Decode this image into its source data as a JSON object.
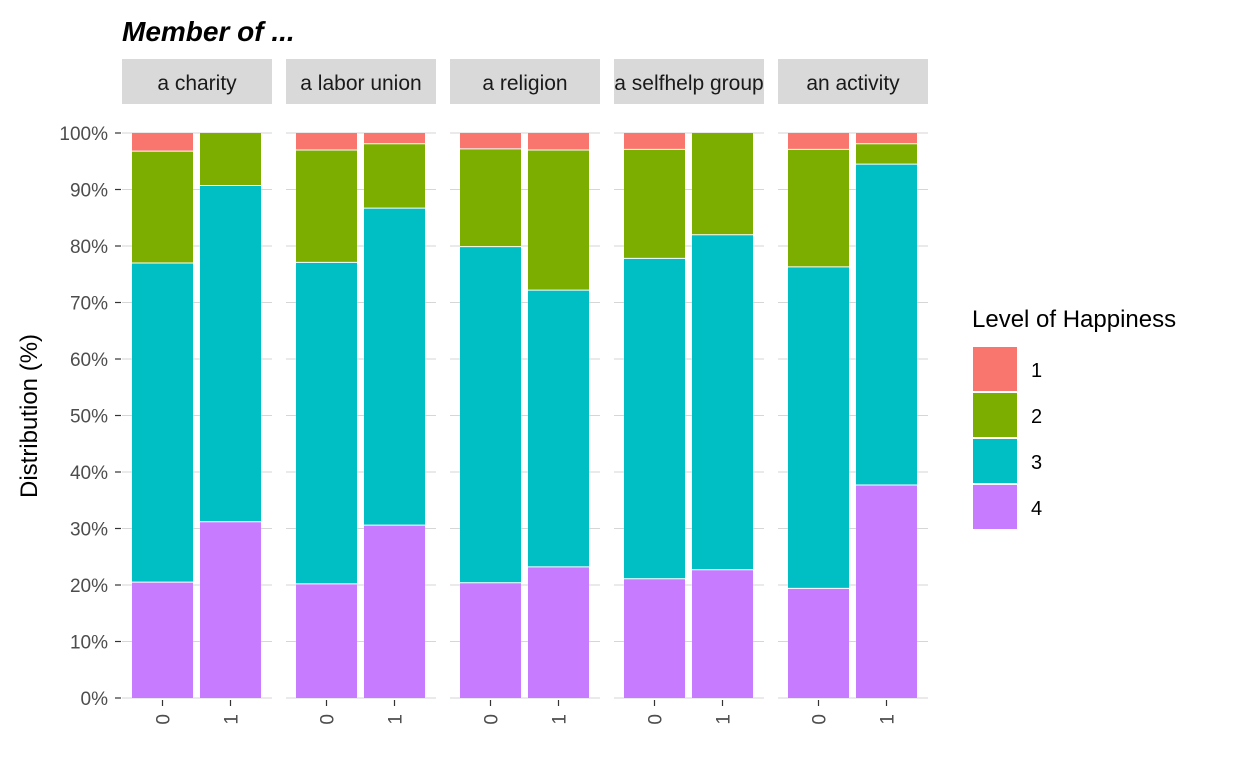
{
  "chart_data": {
    "type": "bar",
    "stacked": true,
    "title": "Member of ...",
    "ylabel": "Distribution (%)",
    "xlabel": "",
    "ylim": [
      0,
      100
    ],
    "y_ticks": [
      "0%",
      "10%",
      "20%",
      "30%",
      "40%",
      "50%",
      "60%",
      "70%",
      "80%",
      "90%",
      "100%"
    ],
    "legend_title": "Level of Happiness",
    "legend_position": "right",
    "grid": true,
    "categories": [
      "0",
      "1"
    ],
    "levels": [
      {
        "name": "1",
        "color": "#F8766D"
      },
      {
        "name": "2",
        "color": "#7CAE00"
      },
      {
        "name": "3",
        "color": "#00BFC4"
      },
      {
        "name": "4",
        "color": "#C77CFF"
      }
    ],
    "panels": [
      {
        "label": "a charity",
        "bars": [
          {
            "category": "0",
            "values": {
              "4": 20.5,
              "3": 56.5,
              "2": 19.8,
              "1": 3.2
            }
          },
          {
            "category": "1",
            "values": {
              "4": 31.2,
              "3": 59.5,
              "2": 9.3,
              "1": 0
            }
          }
        ]
      },
      {
        "label": "a labor union",
        "bars": [
          {
            "category": "0",
            "values": {
              "4": 20.2,
              "3": 56.9,
              "2": 19.9,
              "1": 3.0
            }
          },
          {
            "category": "1",
            "values": {
              "4": 30.6,
              "3": 56.1,
              "2": 11.4,
              "1": 1.9
            }
          }
        ]
      },
      {
        "label": "a religion",
        "bars": [
          {
            "category": "0",
            "values": {
              "4": 20.4,
              "3": 59.5,
              "2": 17.3,
              "1": 2.8
            }
          },
          {
            "category": "1",
            "values": {
              "4": 23.2,
              "3": 49.0,
              "2": 24.8,
              "1": 3.0
            }
          }
        ]
      },
      {
        "label": "a selfhelp group",
        "bars": [
          {
            "category": "0",
            "values": {
              "4": 21.1,
              "3": 56.7,
              "2": 19.3,
              "1": 2.9
            }
          },
          {
            "category": "1",
            "values": {
              "4": 22.7,
              "3": 59.3,
              "2": 18.0,
              "1": 0
            }
          }
        ]
      },
      {
        "label": "an activity",
        "bars": [
          {
            "category": "0",
            "values": {
              "4": 19.4,
              "3": 56.9,
              "2": 20.8,
              "1": 2.9
            }
          },
          {
            "category": "1",
            "values": {
              "4": 37.7,
              "3": 56.8,
              "2": 3.6,
              "1": 1.9
            }
          }
        ]
      }
    ]
  }
}
